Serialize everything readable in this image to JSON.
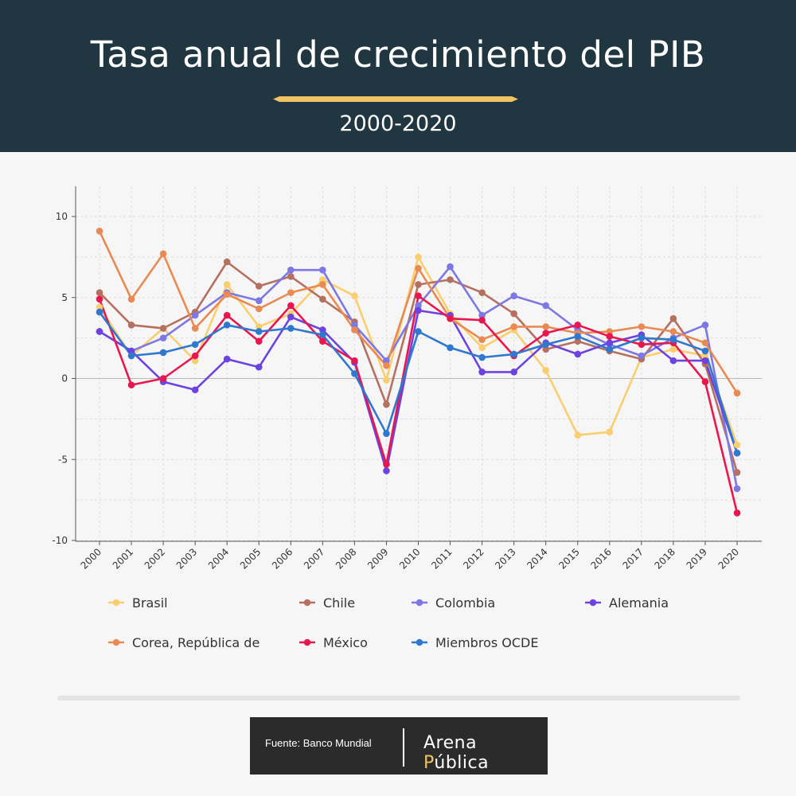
{
  "header": {
    "title": "Tasa anual de crecimiento del PIB",
    "subtitle": "2000-2020"
  },
  "colors": {
    "header_bg": "#203641",
    "ornament": "#f2c265",
    "background": "#f6f6f6"
  },
  "footer": {
    "source": "Fuente: Banco Mundial",
    "brand_a": "Arena ",
    "brand_b": "P",
    "brand_c": "ública"
  },
  "chart_data": {
    "type": "line",
    "title": "Tasa anual de crecimiento del PIB",
    "subtitle": "2000-2020",
    "xlabel": "",
    "ylabel": "",
    "ylim": [
      -10,
      12
    ],
    "yticks": [
      -10,
      -5,
      0,
      5,
      10
    ],
    "grid": true,
    "legend_position": "bottom",
    "categories": [
      "2000",
      "2001",
      "2002",
      "2003",
      "2004",
      "2005",
      "2006",
      "2007",
      "2008",
      "2009",
      "2010",
      "2011",
      "2012",
      "2013",
      "2014",
      "2015",
      "2016",
      "2017",
      "2018",
      "2019",
      "2020"
    ],
    "series": [
      {
        "name": "Brasil",
        "color": "#f9ce6e",
        "values": [
          4.4,
          1.4,
          3.1,
          1.1,
          5.8,
          3.2,
          4.0,
          6.1,
          5.1,
          -0.1,
          7.5,
          4.0,
          1.9,
          3.0,
          0.5,
          -3.5,
          -3.3,
          1.3,
          1.8,
          1.4,
          -4.1
        ]
      },
      {
        "name": "Chile",
        "color": "#b5705f",
        "values": [
          5.3,
          3.3,
          3.1,
          4.1,
          7.2,
          5.7,
          6.3,
          4.9,
          3.5,
          -1.6,
          5.8,
          6.1,
          5.3,
          4.0,
          1.8,
          2.3,
          1.7,
          1.2,
          3.7,
          0.9,
          -5.8
        ]
      },
      {
        "name": "Colombia",
        "color": "#7d78e3",
        "values": [
          2.9,
          1.7,
          2.5,
          3.9,
          5.3,
          4.8,
          6.7,
          6.7,
          3.3,
          1.1,
          4.5,
          6.9,
          3.9,
          5.1,
          4.5,
          3.0,
          2.1,
          1.4,
          2.5,
          3.3,
          -6.8
        ]
      },
      {
        "name": "Alemania",
        "color": "#6c42e0",
        "values": [
          2.9,
          1.7,
          -0.2,
          -0.7,
          1.2,
          0.7,
          3.8,
          3.0,
          1.0,
          -5.7,
          4.2,
          3.9,
          0.4,
          0.4,
          2.2,
          1.5,
          2.2,
          2.7,
          1.1,
          1.1,
          -4.6
        ]
      },
      {
        "name": "Corea, República de",
        "color": "#ea8a53",
        "values": [
          9.1,
          4.9,
          7.7,
          3.1,
          5.2,
          4.3,
          5.3,
          5.8,
          3.0,
          0.8,
          6.8,
          3.7,
          2.4,
          3.2,
          3.2,
          2.8,
          2.9,
          3.2,
          2.9,
          2.2,
          -0.9
        ]
      },
      {
        "name": "México",
        "color": "#e8174f",
        "values": [
          4.9,
          -0.4,
          -0.0,
          1.4,
          3.9,
          2.3,
          4.5,
          2.3,
          1.1,
          -5.3,
          5.1,
          3.7,
          3.6,
          1.4,
          2.8,
          3.3,
          2.6,
          2.1,
          2.2,
          -0.2,
          -8.3
        ]
      },
      {
        "name": "Miembros OCDE",
        "color": "#2f78cf",
        "values": [
          4.1,
          1.4,
          1.6,
          2.1,
          3.3,
          2.9,
          3.1,
          2.7,
          0.3,
          -3.4,
          2.9,
          1.9,
          1.3,
          1.5,
          2.1,
          2.6,
          1.8,
          2.5,
          2.4,
          1.7,
          -4.6
        ]
      }
    ]
  }
}
